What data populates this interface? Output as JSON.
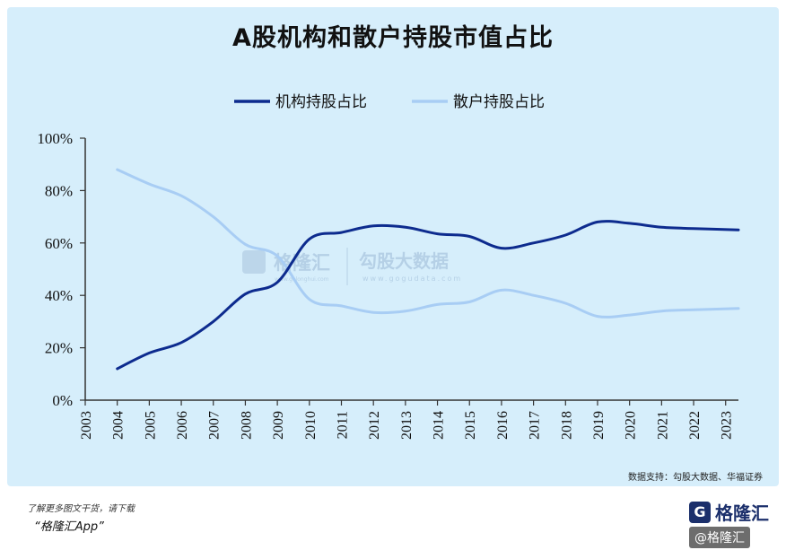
{
  "title": "A股机构和散户持股市值占比",
  "source": "数据支持：勾股大数据、华福证券",
  "footer": {
    "note": "了解更多图文干货，请下载",
    "app": "“格隆汇App”"
  },
  "logo": {
    "mark": "G",
    "text": "格隆汇"
  },
  "corner_badge": "@格隆汇",
  "watermark": {
    "brand": "格隆汇",
    "brand_sub": "www.gelonghui.com",
    "data": "勾股大数据",
    "data_sub": "www.gogudata.com"
  },
  "colors": {
    "institution": "#0d2b8e",
    "retail": "#a8cdf4",
    "background": "#d6eefb"
  },
  "chart_data": {
    "type": "line",
    "title": "A股机构和散户持股市值占比",
    "xlabel": "",
    "ylabel": "",
    "x_ticks": [
      "2003",
      "2004",
      "2005",
      "2006",
      "2007",
      "2008",
      "2009",
      "2010",
      "2011",
      "2012",
      "2013",
      "2014",
      "2015",
      "2016",
      "2017",
      "2018",
      "2019",
      "2020",
      "2021",
      "2022",
      "2023"
    ],
    "xlim": [
      2003,
      2023.4
    ],
    "ylim": [
      0,
      100
    ],
    "y_ticks": [
      0,
      20,
      40,
      60,
      80,
      100
    ],
    "y_tick_labels": [
      "0%",
      "20%",
      "40%",
      "60%",
      "80%",
      "100%"
    ],
    "legend_position": "top-center",
    "grid": false,
    "series": [
      {
        "name": "机构持股占比",
        "color": "#0d2b8e",
        "x": [
          2004,
          2005,
          2006,
          2007,
          2008,
          2009,
          2010,
          2011,
          2012,
          2013,
          2014,
          2015,
          2016,
          2017,
          2018,
          2019,
          2020,
          2021,
          2022,
          2023.4
        ],
        "y": [
          12,
          18,
          22,
          30,
          40.5,
          45,
          61.5,
          64,
          66.5,
          66,
          63.5,
          62.5,
          58,
          60,
          63,
          68,
          67.5,
          66,
          65.5,
          65
        ]
      },
      {
        "name": "散户持股占比",
        "color": "#a8cdf4",
        "x": [
          2004,
          2005,
          2006,
          2007,
          2008,
          2009,
          2010,
          2011,
          2012,
          2013,
          2014,
          2015,
          2016,
          2017,
          2018,
          2019,
          2020,
          2021,
          2022,
          2023.4
        ],
        "y": [
          88,
          82.5,
          78,
          70,
          59.5,
          55,
          38.5,
          36,
          33.5,
          34,
          36.5,
          37.5,
          42,
          40,
          37,
          32,
          32.5,
          34,
          34.5,
          35
        ]
      }
    ]
  }
}
